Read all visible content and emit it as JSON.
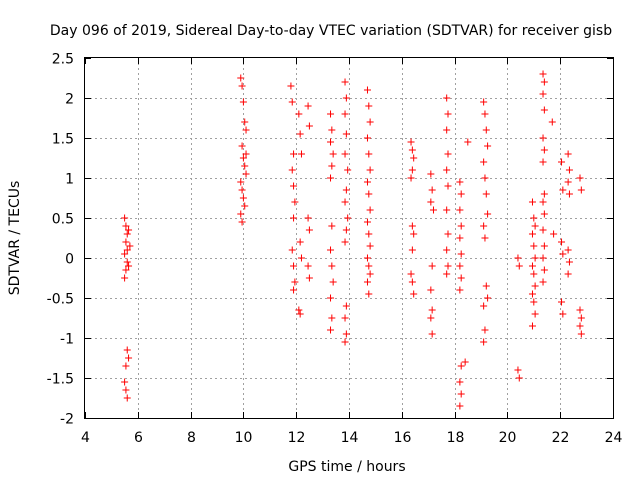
{
  "chart_data": {
    "type": "scatter",
    "title": "Day 096 of 2019, Sidereal Day-to-day VTEC variation (SDTVAR) for receiver gisb",
    "xlabel": "GPS time / hours",
    "ylabel": "SDTVAR / TECUs",
    "xlim": [
      4,
      24
    ],
    "ylim": [
      -2,
      2.5
    ],
    "xticks": [
      "4",
      "6",
      "8",
      "10",
      "12",
      "14",
      "16",
      "18",
      "20",
      "22",
      "24"
    ],
    "yticks": [
      "-2",
      "-1.5",
      "-1",
      "-0.5",
      "0",
      "0.5",
      "1",
      "1.5",
      "2",
      "2.5"
    ],
    "grid": true,
    "marker": "+",
    "marker_color": "#ff0000",
    "series": [
      {
        "name": "SDTVAR",
        "points": [
          [
            5.5,
            0.5
          ],
          [
            5.55,
            0.4
          ],
          [
            5.6,
            0.3
          ],
          [
            5.55,
            0.2
          ],
          [
            5.6,
            0.1
          ],
          [
            5.5,
            0.05
          ],
          [
            5.6,
            -0.05
          ],
          [
            5.55,
            -0.15
          ],
          [
            5.5,
            -0.25
          ],
          [
            5.65,
            0.35
          ],
          [
            5.7,
            0.15
          ],
          [
            5.65,
            -0.1
          ],
          [
            5.6,
            -1.15
          ],
          [
            5.65,
            -1.25
          ],
          [
            5.55,
            -1.35
          ],
          [
            5.5,
            -1.55
          ],
          [
            5.55,
            -1.65
          ],
          [
            5.6,
            -1.75
          ],
          [
            9.9,
            2.25
          ],
          [
            9.95,
            2.15
          ],
          [
            10.0,
            1.95
          ],
          [
            10.05,
            1.7
          ],
          [
            10.1,
            1.6
          ],
          [
            9.95,
            1.4
          ],
          [
            10.0,
            1.25
          ],
          [
            10.05,
            1.15
          ],
          [
            10.1,
            1.05
          ],
          [
            9.9,
            0.95
          ],
          [
            9.95,
            0.85
          ],
          [
            10.0,
            0.75
          ],
          [
            10.05,
            0.65
          ],
          [
            9.9,
            0.55
          ],
          [
            9.95,
            0.45
          ],
          [
            10.1,
            1.3
          ],
          [
            11.8,
            2.15
          ],
          [
            11.85,
            1.95
          ],
          [
            11.9,
            1.3
          ],
          [
            11.85,
            1.1
          ],
          [
            11.9,
            0.9
          ],
          [
            11.95,
            0.7
          ],
          [
            11.9,
            0.5
          ],
          [
            11.85,
            0.1
          ],
          [
            11.9,
            -0.1
          ],
          [
            11.95,
            -0.3
          ],
          [
            11.9,
            -0.4
          ],
          [
            12.1,
            1.8
          ],
          [
            12.15,
            1.55
          ],
          [
            12.2,
            1.3
          ],
          [
            12.15,
            0.2
          ],
          [
            12.2,
            0.0
          ],
          [
            12.1,
            -0.65
          ],
          [
            12.15,
            -0.7
          ],
          [
            12.45,
            1.9
          ],
          [
            12.5,
            1.65
          ],
          [
            12.45,
            0.5
          ],
          [
            12.5,
            0.35
          ],
          [
            12.45,
            -0.1
          ],
          [
            12.5,
            -0.25
          ],
          [
            13.3,
            1.8
          ],
          [
            13.35,
            1.6
          ],
          [
            13.3,
            1.45
          ],
          [
            13.4,
            1.3
          ],
          [
            13.35,
            1.15
          ],
          [
            13.3,
            1.0
          ],
          [
            13.35,
            0.4
          ],
          [
            13.3,
            0.1
          ],
          [
            13.35,
            -0.1
          ],
          [
            13.4,
            -0.3
          ],
          [
            13.3,
            -0.5
          ],
          [
            13.35,
            -0.75
          ],
          [
            13.3,
            -0.9
          ],
          [
            13.85,
            2.2
          ],
          [
            13.9,
            2.0
          ],
          [
            13.85,
            1.8
          ],
          [
            13.9,
            1.55
          ],
          [
            13.85,
            1.3
          ],
          [
            13.95,
            1.1
          ],
          [
            13.9,
            0.85
          ],
          [
            13.85,
            0.7
          ],
          [
            13.95,
            0.5
          ],
          [
            13.9,
            0.35
          ],
          [
            13.85,
            0.2
          ],
          [
            13.9,
            -0.6
          ],
          [
            13.85,
            -0.75
          ],
          [
            13.9,
            -0.95
          ],
          [
            13.85,
            -1.05
          ],
          [
            14.7,
            2.1
          ],
          [
            14.75,
            1.9
          ],
          [
            14.8,
            1.7
          ],
          [
            14.7,
            1.5
          ],
          [
            14.75,
            1.3
          ],
          [
            14.8,
            1.1
          ],
          [
            14.7,
            0.95
          ],
          [
            14.75,
            0.8
          ],
          [
            14.8,
            0.6
          ],
          [
            14.7,
            0.45
          ],
          [
            14.75,
            0.3
          ],
          [
            14.8,
            0.15
          ],
          [
            14.7,
            0.0
          ],
          [
            14.75,
            -0.1
          ],
          [
            14.8,
            -0.2
          ],
          [
            14.7,
            -0.3
          ],
          [
            14.75,
            -0.45
          ],
          [
            16.35,
            1.45
          ],
          [
            16.4,
            1.35
          ],
          [
            16.45,
            1.25
          ],
          [
            16.4,
            1.1
          ],
          [
            16.35,
            1.0
          ],
          [
            16.4,
            0.4
          ],
          [
            16.45,
            0.3
          ],
          [
            16.4,
            0.1
          ],
          [
            16.35,
            -0.2
          ],
          [
            16.4,
            -0.3
          ],
          [
            16.45,
            -0.45
          ],
          [
            17.1,
            1.05
          ],
          [
            17.15,
            0.85
          ],
          [
            17.1,
            0.7
          ],
          [
            17.2,
            0.6
          ],
          [
            17.15,
            -0.1
          ],
          [
            17.1,
            -0.4
          ],
          [
            17.15,
            -0.65
          ],
          [
            17.1,
            -0.75
          ],
          [
            17.15,
            -0.95
          ],
          [
            17.7,
            2.0
          ],
          [
            17.75,
            1.8
          ],
          [
            17.7,
            1.6
          ],
          [
            17.75,
            1.3
          ],
          [
            17.7,
            1.1
          ],
          [
            17.75,
            0.9
          ],
          [
            17.7,
            0.6
          ],
          [
            17.75,
            0.3
          ],
          [
            17.7,
            0.1
          ],
          [
            17.75,
            -0.1
          ],
          [
            17.7,
            -0.2
          ],
          [
            18.2,
            0.95
          ],
          [
            18.25,
            0.8
          ],
          [
            18.2,
            0.6
          ],
          [
            18.25,
            0.4
          ],
          [
            18.2,
            0.25
          ],
          [
            18.25,
            0.05
          ],
          [
            18.2,
            -0.1
          ],
          [
            18.25,
            -0.25
          ],
          [
            18.2,
            -0.4
          ],
          [
            18.25,
            -1.35
          ],
          [
            18.2,
            -1.55
          ],
          [
            18.25,
            -1.7
          ],
          [
            18.2,
            -1.85
          ],
          [
            18.5,
            1.45
          ],
          [
            18.4,
            -1.3
          ],
          [
            19.1,
            1.95
          ],
          [
            19.15,
            1.8
          ],
          [
            19.2,
            1.6
          ],
          [
            19.25,
            1.4
          ],
          [
            19.1,
            1.2
          ],
          [
            19.15,
            1.0
          ],
          [
            19.2,
            0.8
          ],
          [
            19.25,
            0.55
          ],
          [
            19.1,
            0.4
          ],
          [
            19.15,
            0.25
          ],
          [
            19.2,
            -0.35
          ],
          [
            19.25,
            -0.5
          ],
          [
            19.1,
            -0.6
          ],
          [
            19.15,
            -0.9
          ],
          [
            19.1,
            -1.05
          ],
          [
            20.4,
            0.0
          ],
          [
            20.45,
            -0.1
          ],
          [
            20.4,
            -1.4
          ],
          [
            20.45,
            -1.5
          ],
          [
            20.95,
            0.7
          ],
          [
            21.0,
            0.5
          ],
          [
            21.05,
            0.4
          ],
          [
            20.95,
            0.3
          ],
          [
            21.0,
            0.15
          ],
          [
            21.05,
            0.0
          ],
          [
            20.95,
            -0.1
          ],
          [
            21.0,
            -0.2
          ],
          [
            21.05,
            -0.35
          ],
          [
            20.95,
            -0.45
          ],
          [
            21.0,
            -0.55
          ],
          [
            21.05,
            -0.7
          ],
          [
            20.95,
            -0.85
          ],
          [
            21.35,
            2.3
          ],
          [
            21.4,
            2.2
          ],
          [
            21.35,
            2.05
          ],
          [
            21.4,
            1.85
          ],
          [
            21.35,
            1.5
          ],
          [
            21.4,
            1.35
          ],
          [
            21.35,
            1.2
          ],
          [
            21.4,
            0.8
          ],
          [
            21.35,
            0.7
          ],
          [
            21.4,
            0.55
          ],
          [
            21.35,
            0.35
          ],
          [
            21.4,
            0.15
          ],
          [
            21.35,
            0.0
          ],
          [
            21.4,
            -0.15
          ],
          [
            21.35,
            -0.3
          ],
          [
            21.7,
            1.7
          ],
          [
            21.75,
            0.3
          ],
          [
            22.05,
            1.2
          ],
          [
            22.1,
            0.85
          ],
          [
            22.05,
            0.2
          ],
          [
            22.1,
            0.05
          ],
          [
            22.05,
            -0.55
          ],
          [
            22.1,
            -0.7
          ],
          [
            22.3,
            1.3
          ],
          [
            22.35,
            1.1
          ],
          [
            22.3,
            0.95
          ],
          [
            22.35,
            0.8
          ],
          [
            22.3,
            0.1
          ],
          [
            22.35,
            -0.05
          ],
          [
            22.3,
            -0.2
          ],
          [
            22.75,
            1.0
          ],
          [
            22.8,
            0.85
          ],
          [
            22.75,
            -0.65
          ],
          [
            22.8,
            -0.75
          ],
          [
            22.75,
            -0.85
          ],
          [
            22.8,
            -0.95
          ]
        ]
      }
    ]
  }
}
